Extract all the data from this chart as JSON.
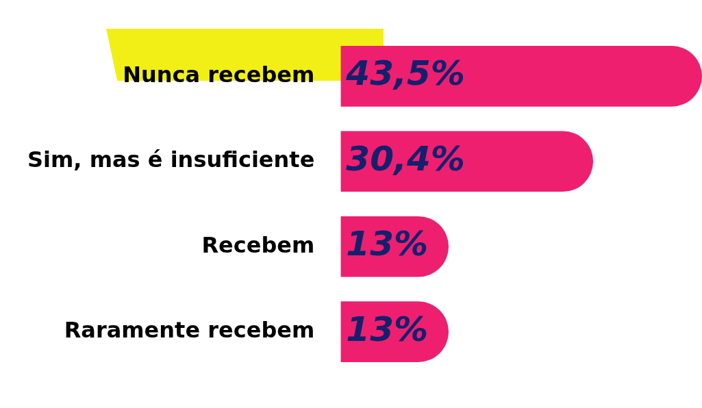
{
  "chart_data": {
    "type": "bar",
    "orientation": "horizontal",
    "categories": [
      "Nunca recebem",
      "Sim, mas é insuficiente",
      "Recebem",
      "Raramente recebem"
    ],
    "values": [
      43.5,
      30.4,
      13,
      13
    ],
    "value_labels": [
      "43,5%",
      "30,4%",
      "13%",
      "13%"
    ],
    "color": "#ee1f6f",
    "legend": false
  }
}
